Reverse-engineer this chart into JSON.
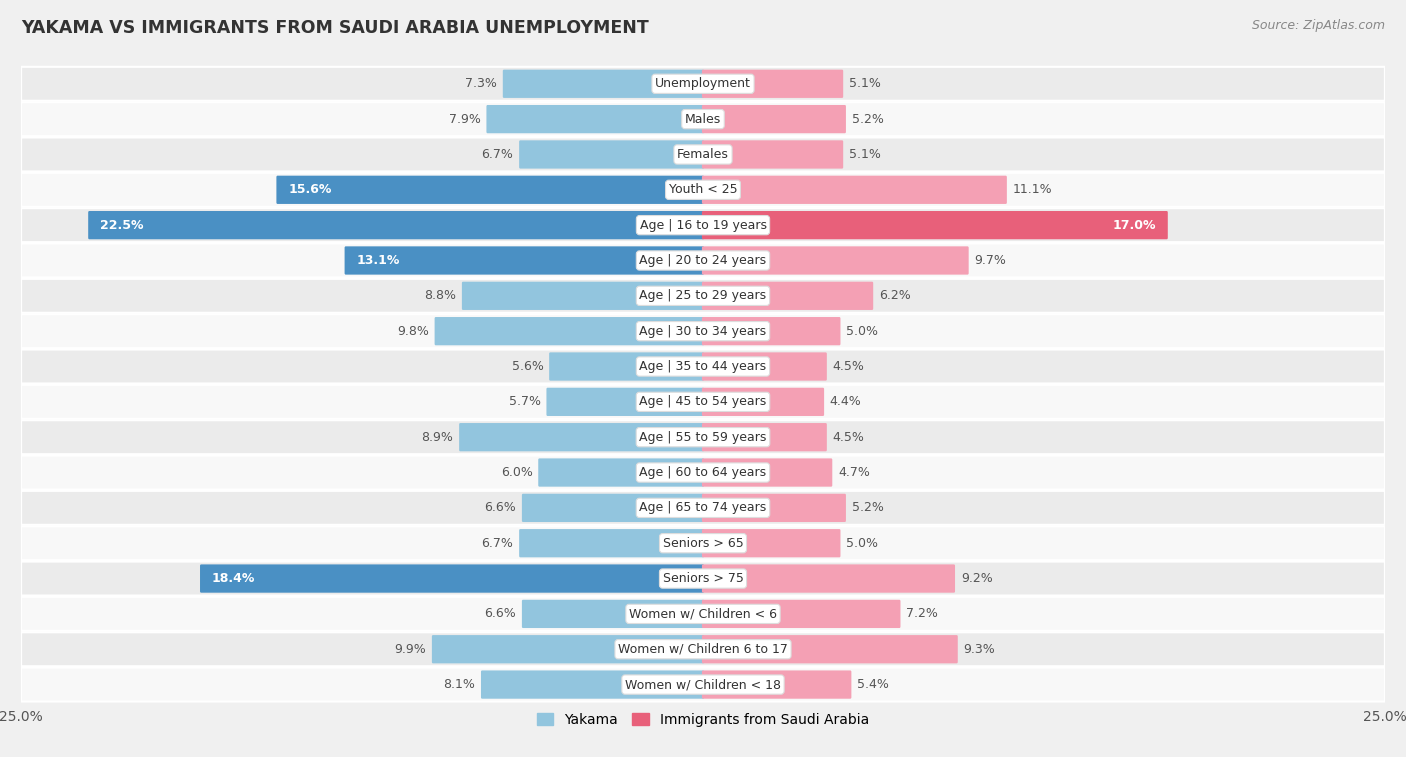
{
  "title": "YAKAMA VS IMMIGRANTS FROM SAUDI ARABIA UNEMPLOYMENT",
  "source": "Source: ZipAtlas.com",
  "categories": [
    "Unemployment",
    "Males",
    "Females",
    "Youth < 25",
    "Age | 16 to 19 years",
    "Age | 20 to 24 years",
    "Age | 25 to 29 years",
    "Age | 30 to 34 years",
    "Age | 35 to 44 years",
    "Age | 45 to 54 years",
    "Age | 55 to 59 years",
    "Age | 60 to 64 years",
    "Age | 65 to 74 years",
    "Seniors > 65",
    "Seniors > 75",
    "Women w/ Children < 6",
    "Women w/ Children 6 to 17",
    "Women w/ Children < 18"
  ],
  "yakama_values": [
    7.3,
    7.9,
    6.7,
    15.6,
    22.5,
    13.1,
    8.8,
    9.8,
    5.6,
    5.7,
    8.9,
    6.0,
    6.6,
    6.7,
    18.4,
    6.6,
    9.9,
    8.1
  ],
  "immigrants_values": [
    5.1,
    5.2,
    5.1,
    11.1,
    17.0,
    9.7,
    6.2,
    5.0,
    4.5,
    4.4,
    4.5,
    4.7,
    5.2,
    5.0,
    9.2,
    7.2,
    9.3,
    5.4
  ],
  "yakama_color": "#92c5de",
  "immigrants_color": "#f4a0b4",
  "yakama_highlight_color": "#4a90c4",
  "immigrants_highlight_color": "#e8607a",
  "row_bg_even": "#ebebeb",
  "row_bg_odd": "#f8f8f8",
  "fig_bg": "#f0f0f0",
  "x_max": 25.0,
  "label_fontsize": 9.0,
  "title_fontsize": 12.5,
  "source_fontsize": 9.0,
  "legend_yakama": "Yakama",
  "legend_immigrants": "Immigrants from Saudi Arabia",
  "bar_height": 0.72,
  "label_inside_threshold": 12.5
}
